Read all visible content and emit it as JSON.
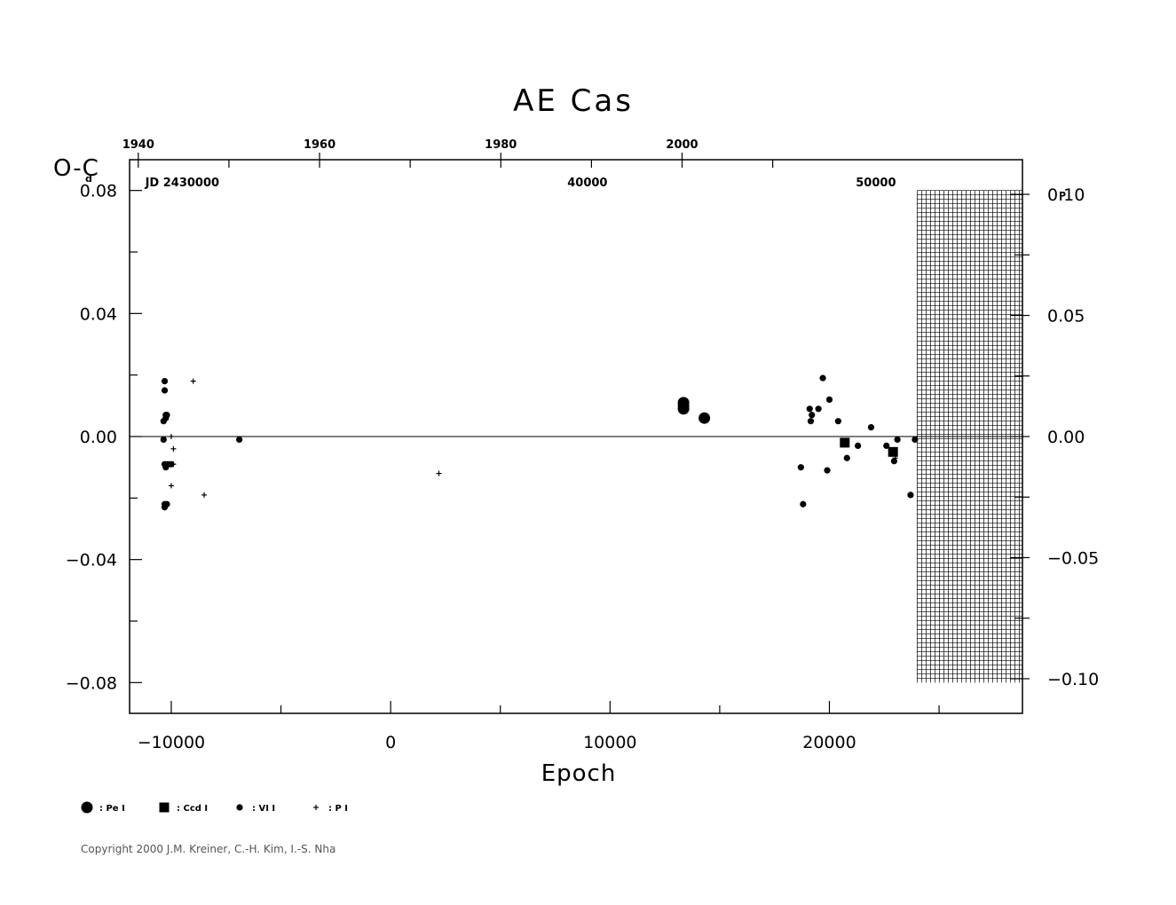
{
  "chart_data": {
    "type": "scatter",
    "title": "AE Cas",
    "xlabel": "Epoch",
    "ylabel": "O-C",
    "ylabel_unit": "d",
    "right_ylabel_unit": "P",
    "top_axis_years": [
      "1940",
      "1960",
      "1980",
      "2000"
    ],
    "top_axis_year_values": [
      1940,
      1960,
      1980,
      2000
    ],
    "top_axis_jd_labels": [
      "JD 2430000",
      "40000",
      "50000"
    ],
    "top_axis_jd_epochs": [
      -9500,
      8970,
      22120
    ],
    "xlim": [
      -11900,
      28800
    ],
    "ylim": [
      -0.09,
      0.09
    ],
    "right_ylim_phase": [
      -0.1143,
      0.1143
    ],
    "xticks": [
      -10000,
      0,
      10000,
      20000
    ],
    "xtick_labels": [
      "−10000",
      "0",
      "10000",
      "20000"
    ],
    "yticks": [
      0.08,
      0.04,
      0.0,
      -0.04,
      -0.08
    ],
    "ytick_labels": [
      "0.08",
      "0.04",
      "0.00",
      "−0.04",
      "−0.08"
    ],
    "right_yticks": [
      0.1,
      0.05,
      0.0,
      -0.05,
      -0.1
    ],
    "right_ytick_labels": [
      "0.10",
      "0.05",
      "0.00",
      "−0.05",
      "−0.10"
    ],
    "zero_line": true,
    "shaded_region_epoch": [
      24000,
      28800
    ],
    "shaded_region_y": [
      0.08,
      -0.08
    ],
    "legend": [
      {
        "symbol": "large-circle",
        "label": ": Pe  I"
      },
      {
        "symbol": "square",
        "label": ": Ccd  I"
      },
      {
        "symbol": "small-circle",
        "label": ": VI  I"
      },
      {
        "symbol": "plus",
        "label": ": P  I"
      }
    ],
    "series": [
      {
        "name": "Pe I",
        "symbol": "large-circle",
        "x": [
          13350,
          13350,
          13350,
          14300
        ],
        "y": [
          0.011,
          0.01,
          0.009,
          0.006
        ]
      },
      {
        "name": "Ccd I",
        "symbol": "square",
        "x": [
          20700,
          22900
        ],
        "y": [
          -0.002,
          -0.005
        ]
      },
      {
        "name": "VI I",
        "symbol": "small-circle",
        "x": [
          -10300,
          -10300,
          -10250,
          -10250,
          -10200,
          -10350,
          -10350,
          -10300,
          -10150,
          -10250,
          -10200,
          -10300,
          -10300,
          -10000,
          -6900,
          18700,
          18800,
          19100,
          19150,
          19200,
          19500,
          19700,
          19900,
          20000,
          20400,
          20800,
          21300,
          21900,
          22600,
          22950,
          23100,
          23700,
          23900
        ],
        "y": [
          0.018,
          0.015,
          0.007,
          0.006,
          0.007,
          0.005,
          -0.001,
          -0.009,
          -0.009,
          -0.01,
          -0.022,
          -0.023,
          -0.022,
          -0.009,
          -0.001,
          -0.01,
          -0.022,
          0.009,
          0.005,
          0.007,
          0.009,
          0.019,
          -0.011,
          0.012,
          0.005,
          -0.007,
          -0.003,
          0.003,
          -0.003,
          -0.008,
          -0.001,
          -0.019,
          -0.001
        ]
      },
      {
        "name": "P I",
        "symbol": "plus",
        "x": [
          -9000,
          -10000,
          -9900,
          -9900,
          -10000,
          -8500,
          2200,
          23000
        ],
        "y": [
          0.018,
          0.0,
          -0.004,
          -0.009,
          -0.016,
          -0.019,
          -0.012,
          -0.007
        ]
      }
    ]
  },
  "copyright": "Copyright 2000 J.M. Kreiner, C.-H. Kim, I.-S. Nha"
}
